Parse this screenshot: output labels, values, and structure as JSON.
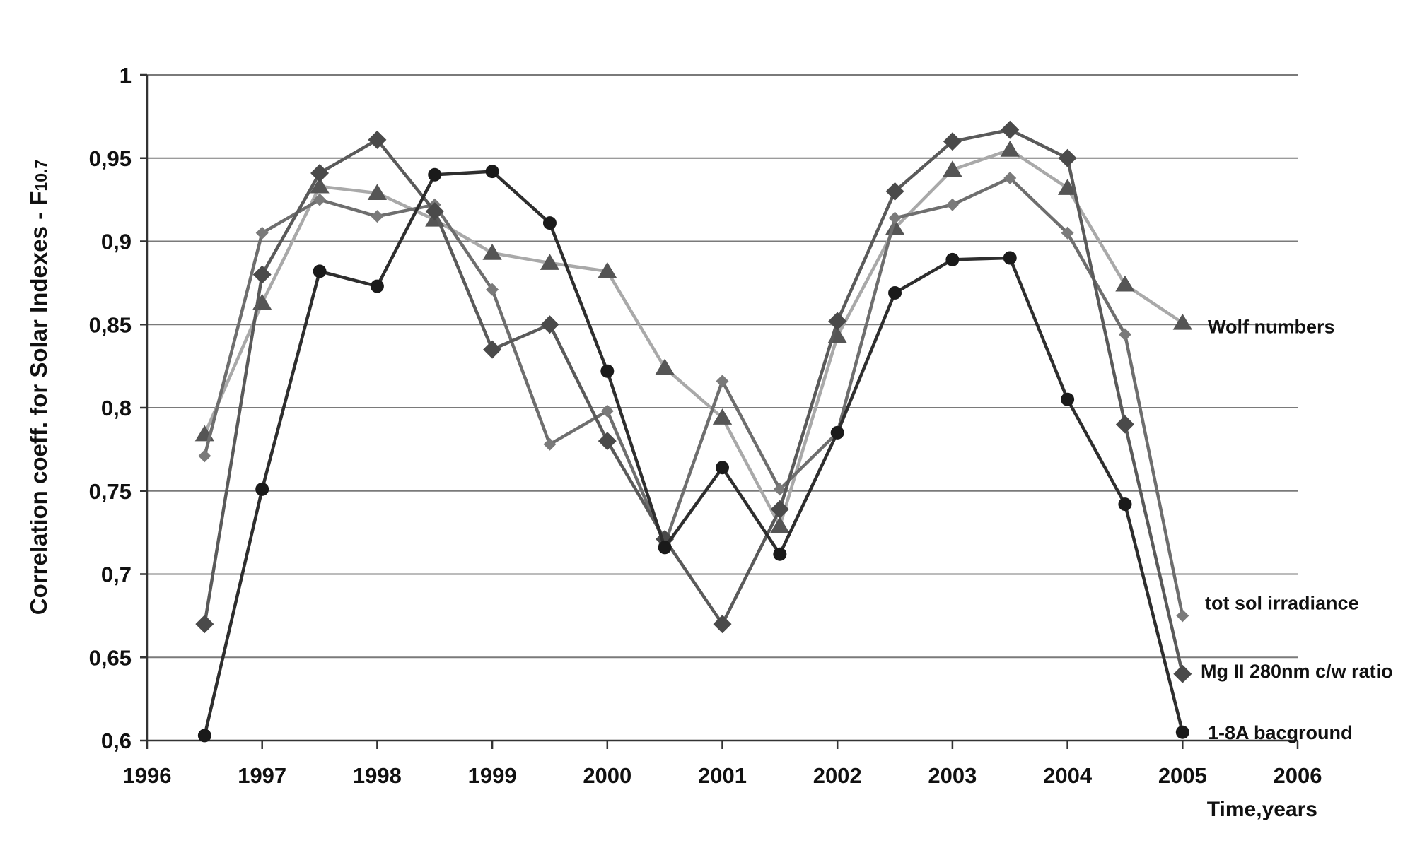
{
  "chart_data": {
    "type": "line",
    "xlabel": "Time,years",
    "ylabel": "Correlation  coeff. for  Solar Indexes - F",
    "ylabel_subscript": "10.7",
    "xlim": [
      1996,
      2006
    ],
    "ylim": [
      0.6,
      1.0
    ],
    "x_ticks": [
      1996,
      1997,
      1998,
      1999,
      2000,
      2001,
      2002,
      2003,
      2004,
      2005,
      2006
    ],
    "x_tick_labels": [
      "1996",
      "1997",
      "1998",
      "1999",
      "2000",
      "2001",
      "2002",
      "2003",
      "2004",
      "2005",
      "2006"
    ],
    "y_ticks": [
      0.6,
      0.65,
      0.7,
      0.75,
      0.8,
      0.85,
      0.9,
      0.95,
      1.0
    ],
    "y_tick_labels": [
      "0,6",
      "0,65",
      "0,7",
      "0,75",
      "0,8",
      "0,85",
      "0,9",
      "0,95",
      "1"
    ],
    "grid": "horizontal",
    "legend": "labels at line ends, right",
    "x": [
      1996.5,
      1997,
      1997.5,
      1998,
      1998.5,
      1999,
      1999.5,
      2000,
      2000.5,
      2001,
      2001.5,
      2002,
      2002.5,
      2003,
      2003.5,
      2004,
      2004.5,
      2005
    ],
    "series": [
      {
        "name": "Wolf numbers",
        "marker": "triangle",
        "color": "#a9a9a9",
        "markerColor": "#555555",
        "values": [
          0.784,
          0.863,
          0.933,
          0.929,
          0.913,
          0.893,
          0.887,
          0.882,
          0.824,
          0.794,
          0.729,
          0.843,
          0.908,
          0.943,
          0.955,
          0.932,
          0.874,
          0.851
        ]
      },
      {
        "name": "tot sol irradiance",
        "marker": "diamond-small",
        "color": "#6e6e6e",
        "markerColor": "#7a7a7a",
        "values": [
          0.771,
          0.905,
          0.925,
          0.915,
          0.922,
          0.871,
          0.778,
          0.798,
          0.718,
          0.816,
          0.751,
          0.785,
          0.914,
          0.922,
          0.938,
          0.905,
          0.844,
          0.675
        ]
      },
      {
        "name": "Mg II 280nm c/w ratio",
        "marker": "diamond",
        "color": "#5a5a5a",
        "markerColor": "#4a4a4a",
        "values": [
          0.67,
          0.88,
          0.941,
          0.961,
          0.918,
          0.835,
          0.85,
          0.78,
          0.721,
          0.67,
          0.739,
          0.852,
          0.93,
          0.96,
          0.967,
          0.95,
          0.79,
          0.64
        ]
      },
      {
        "name": "1-8A bacground",
        "marker": "circle",
        "color": "#2e2e2e",
        "markerColor": "#1a1a1a",
        "values": [
          0.603,
          0.751,
          0.882,
          0.873,
          0.94,
          0.942,
          0.911,
          0.822,
          0.716,
          0.764,
          0.712,
          0.785,
          0.869,
          0.889,
          0.89,
          0.805,
          0.742,
          0.605
        ]
      }
    ]
  }
}
